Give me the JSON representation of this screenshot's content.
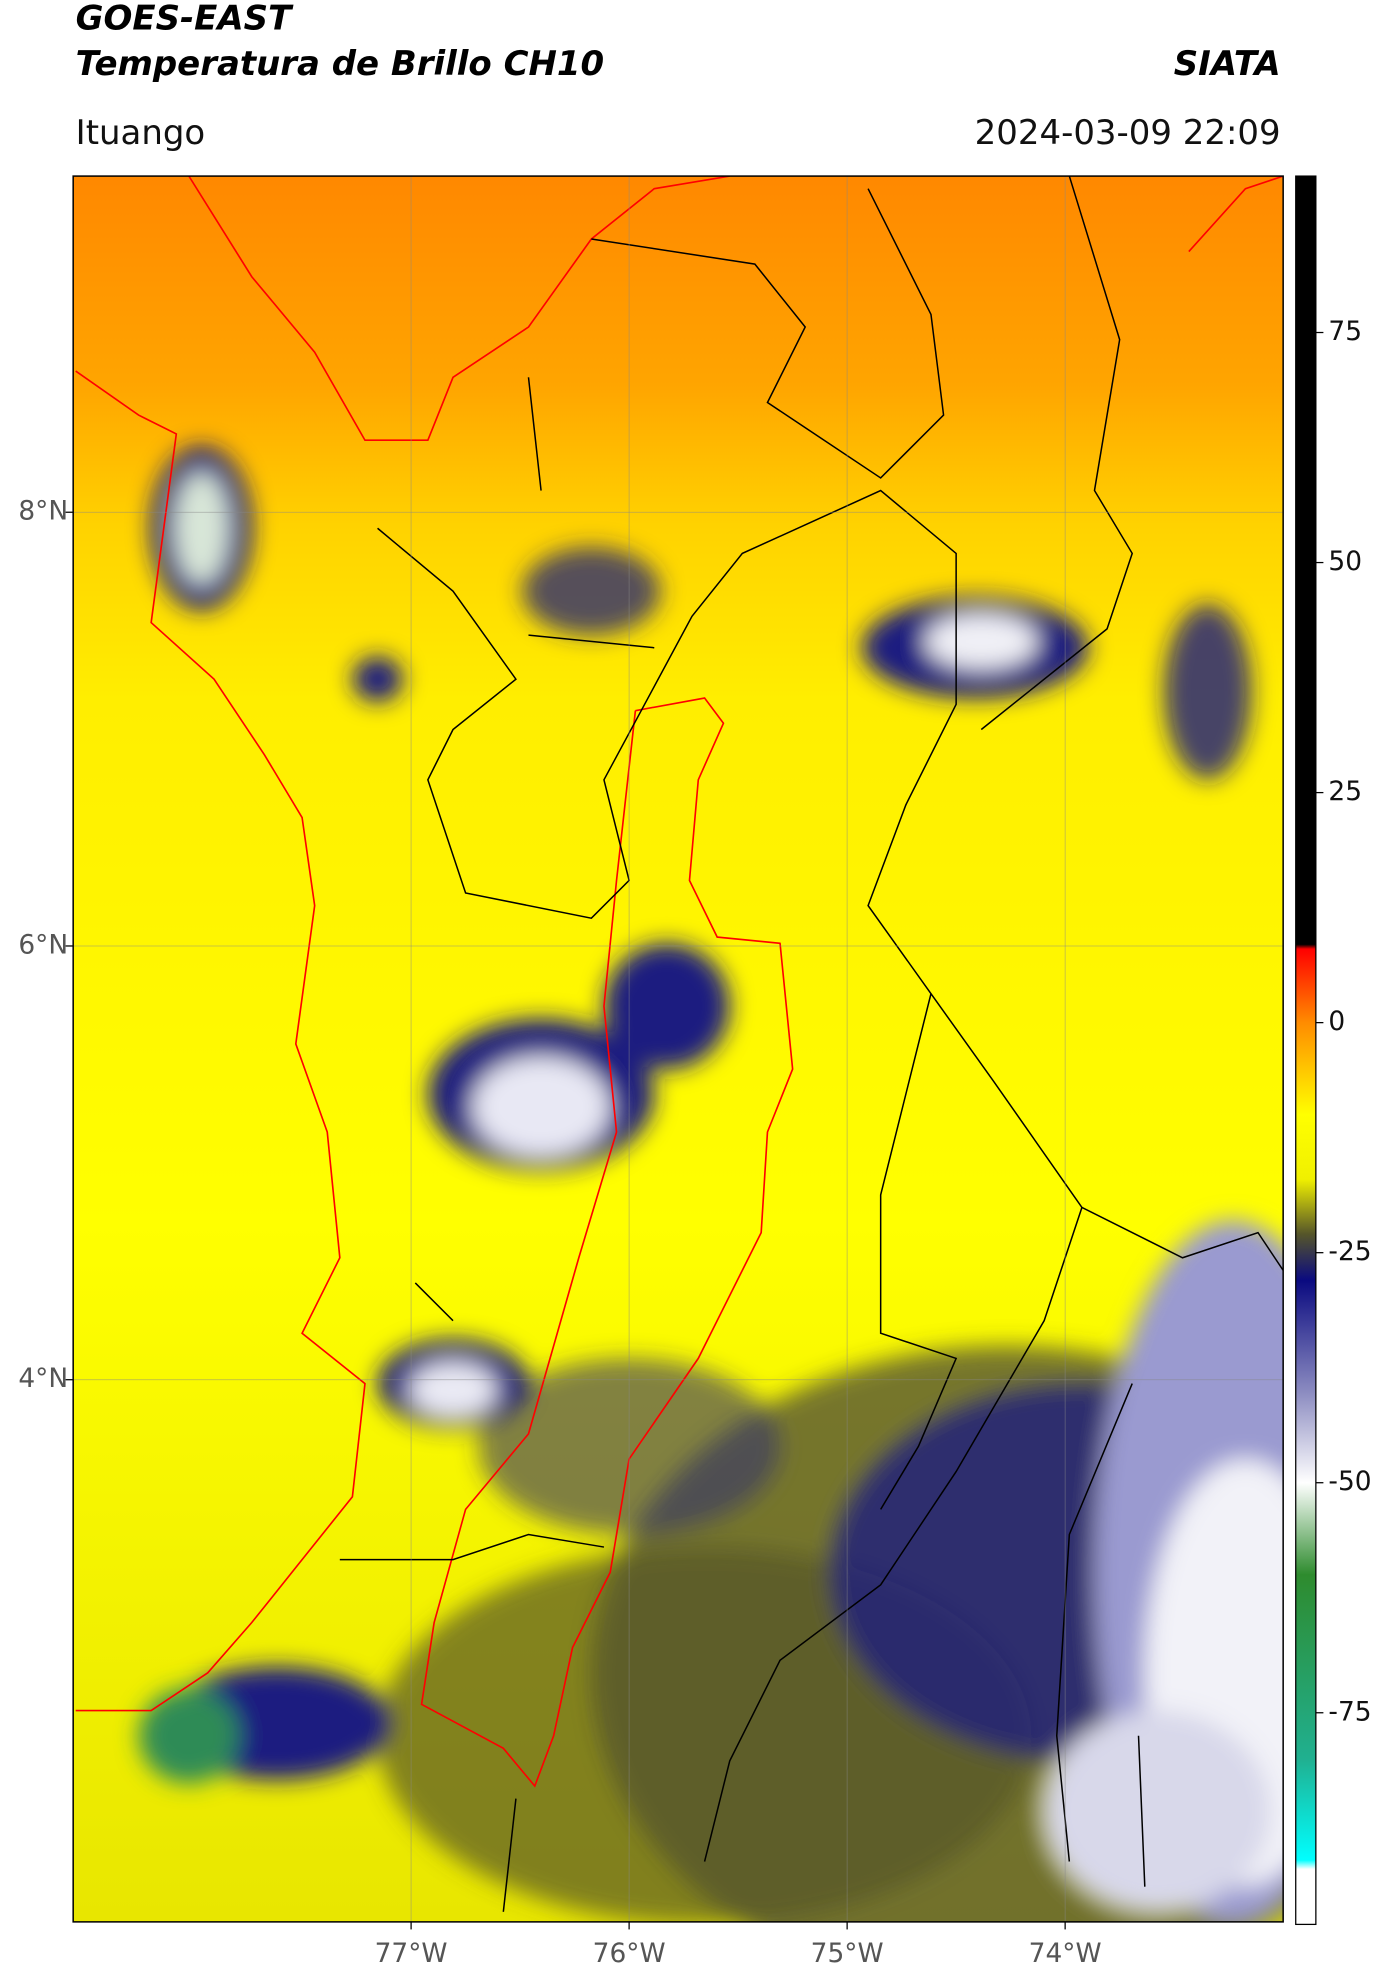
{
  "chart_data": {
    "type": "map",
    "title": "GOES-EAST",
    "subtitle": "Temperatura de Brillo CH10",
    "source": "SIATA",
    "location": "Ituango",
    "datetime": "2024-03-09 22:09",
    "xlim": [
      -78.55,
      -73.0
    ],
    "ylim": [
      1.5,
      9.55
    ],
    "xticks": [
      {
        "value": -77,
        "label": "77°W"
      },
      {
        "value": -76,
        "label": "76°W"
      },
      {
        "value": -75,
        "label": "75°W"
      },
      {
        "value": -74,
        "label": "74°W"
      }
    ],
    "yticks": [
      {
        "value": 8,
        "label": "8°N"
      },
      {
        "value": 6,
        "label": "6°N"
      },
      {
        "value": 4,
        "label": "4°N"
      }
    ],
    "grid": true,
    "clim": [
      -98,
      92
    ],
    "cticks": [
      75,
      50,
      25,
      0,
      -25,
      -50,
      -75
    ],
    "colormap": [
      {
        "value": 92,
        "color": "#000000"
      },
      {
        "value": 8.5,
        "color": "#000000"
      },
      {
        "value": 8,
        "color": "#ff0000"
      },
      {
        "value": 0,
        "color": "#ff8c00"
      },
      {
        "value": -10,
        "color": "#ffff00"
      },
      {
        "value": -17,
        "color": "#f0f000"
      },
      {
        "value": -23,
        "color": "#55552a"
      },
      {
        "value": -28,
        "color": "#0a0a80"
      },
      {
        "value": -40,
        "color": "#8a8ac0"
      },
      {
        "value": -50,
        "color": "#ffffff"
      },
      {
        "value": -60,
        "color": "#2e8b2e"
      },
      {
        "value": -80,
        "color": "#20b090"
      },
      {
        "value": -91,
        "color": "#00ffff"
      },
      {
        "value": -92,
        "color": "#ffffff"
      },
      {
        "value": -98,
        "color": "#ffffff"
      }
    ]
  }
}
